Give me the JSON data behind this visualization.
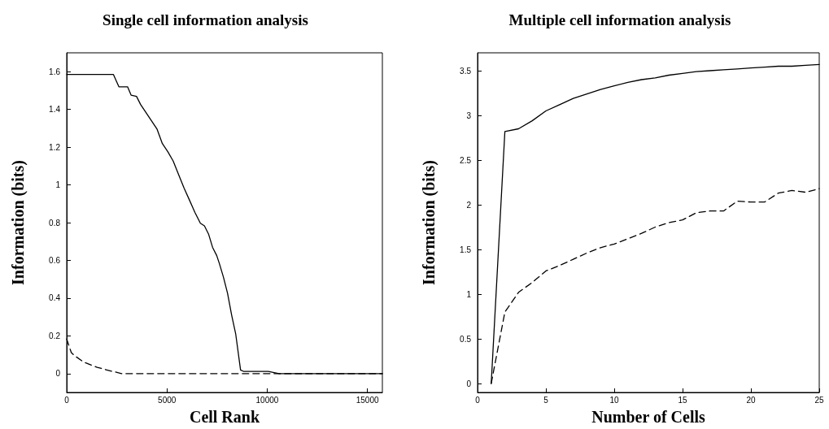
{
  "chart_data": [
    {
      "type": "line",
      "title": "Single cell information analysis",
      "xlabel": "Cell Rank",
      "ylabel": "Information (bits)",
      "marker": "none",
      "xlim": [
        0,
        15745
      ],
      "xticks": [
        0,
        5000,
        10000,
        15000
      ],
      "ylim": [
        -0.1,
        1.7
      ],
      "yticks": [
        0,
        0.2,
        0.4,
        0.6,
        0.8,
        1,
        1.2,
        1.4,
        1.6
      ],
      "series": [
        {
          "color": "#000000",
          "line_style": "solid",
          "x": [
            0,
            2331,
            2602,
            3035,
            3211,
            3482,
            3686,
            3957,
            4228,
            4499,
            4770,
            5041,
            5312,
            5583,
            5854,
            6125,
            6396,
            6667,
            6870,
            7073,
            7276,
            7480,
            7615,
            7818,
            8022,
            8225,
            8428,
            8672,
            8835,
            10054,
            10596,
            15745
          ],
          "values": [
            1.585,
            1.585,
            1.52,
            1.52,
            1.476,
            1.469,
            1.426,
            1.383,
            1.34,
            1.297,
            1.219,
            1.176,
            1.126,
            1.054,
            0.983,
            0.919,
            0.854,
            0.797,
            0.783,
            0.74,
            0.669,
            0.626,
            0.583,
            0.511,
            0.426,
            0.311,
            0.211,
            0.019,
            0.011,
            0.011,
            0,
            0
          ]
        },
        {
          "color": "#000000",
          "line_style": "dashed",
          "x": [
            0,
            230,
            366,
            840,
            1518,
            2195,
            2737,
            15745
          ],
          "values": [
            0.183,
            0.111,
            0.097,
            0.061,
            0.033,
            0.014,
            0,
            0
          ]
        }
      ]
    },
    {
      "type": "line",
      "title": "Multiple cell information analysis",
      "xlabel": "Number of Cells",
      "ylabel": "Information (bits)",
      "marker": "none",
      "xlim": [
        0,
        25
      ],
      "xticks": [
        0,
        5,
        10,
        15,
        20,
        25
      ],
      "ylim": [
        -0.1,
        3.7
      ],
      "yticks": [
        0,
        0.5,
        1,
        1.5,
        2,
        2.5,
        3,
        3.5
      ],
      "series": [
        {
          "color": "#000000",
          "line_style": "solid",
          "x": [
            1,
            2,
            3,
            4,
            5,
            6,
            7,
            8,
            9,
            10,
            11,
            12,
            13,
            14,
            15,
            16,
            17,
            18,
            19,
            20,
            21,
            22,
            23,
            24,
            25
          ],
          "values": [
            0,
            2.82,
            2.85,
            2.94,
            3.05,
            3.12,
            3.19,
            3.24,
            3.29,
            3.33,
            3.37,
            3.4,
            3.42,
            3.45,
            3.47,
            3.49,
            3.5,
            3.51,
            3.52,
            3.53,
            3.54,
            3.55,
            3.55,
            3.56,
            3.57
          ]
        },
        {
          "color": "#000000",
          "line_style": "dashed",
          "x": [
            1,
            2,
            3,
            4,
            5,
            6,
            7,
            8,
            9,
            10,
            11,
            12,
            13,
            14,
            15,
            16,
            17,
            18,
            19,
            20,
            21,
            22,
            23,
            24,
            25
          ],
          "values": [
            0,
            0.8,
            1.02,
            1.13,
            1.26,
            1.32,
            1.39,
            1.46,
            1.52,
            1.56,
            1.62,
            1.68,
            1.75,
            1.8,
            1.83,
            1.91,
            1.93,
            1.93,
            2.04,
            2.03,
            2.03,
            2.13,
            2.16,
            2.14,
            2.18
          ]
        }
      ]
    }
  ]
}
